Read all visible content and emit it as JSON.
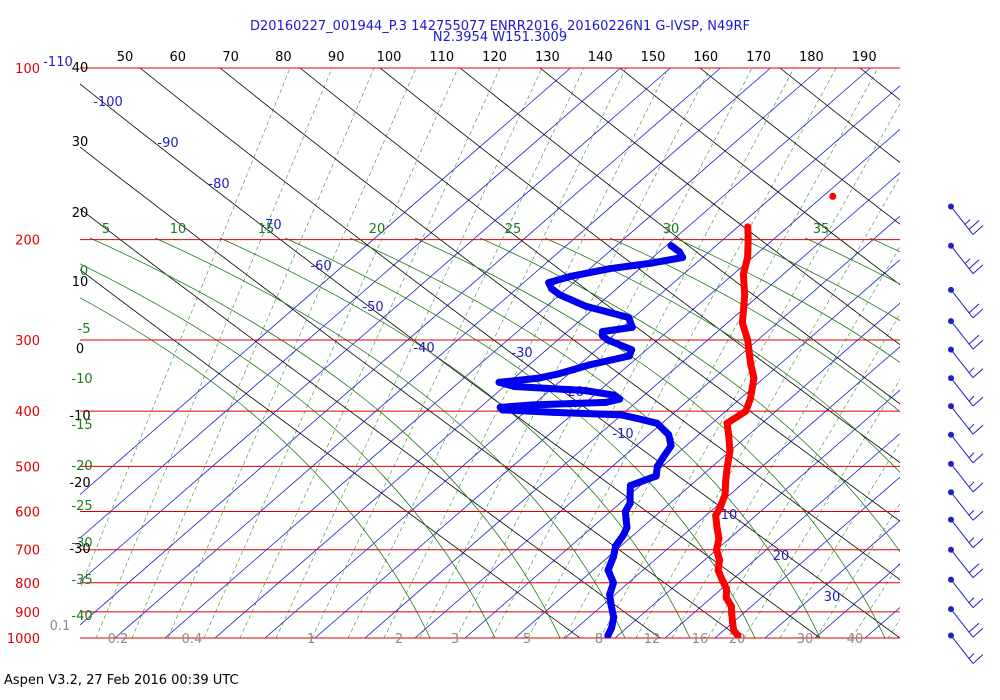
{
  "header": {
    "title_line1": "D20160227_001944_P.3 142755077 ENRR2016, 20160226N1 G-IVSP, N49RF",
    "title_line2": "N2.3954 W151.3009"
  },
  "footer": {
    "text": "Aspen V3.2, 27 Feb 2016  00:39 UTC"
  },
  "chart_data": {
    "type": "skew-t",
    "pressure_axis": {
      "labels": [
        "100",
        "200",
        "300",
        "400",
        "500",
        "600",
        "700",
        "800",
        "900",
        "1000"
      ],
      "color": "#dd0000",
      "range": [
        1000,
        100
      ]
    },
    "temperature_ticks_top": [
      "50",
      "60",
      "70",
      "80",
      "90",
      "100",
      "110",
      "120",
      "130",
      "140",
      "150",
      "160",
      "170",
      "180",
      "190"
    ],
    "blue_isotherm_labels": [
      "-110",
      "-100",
      "-90",
      "-80",
      "-70",
      "-60",
      "-50",
      "-40",
      "-30",
      "-20",
      "-10",
      "10",
      "20",
      "30"
    ],
    "black_left_labels": [
      "40",
      "30",
      "20",
      "10",
      "0",
      "-10",
      "-20",
      "-30"
    ],
    "green_left_labels": [
      "0",
      "-5",
      "-10",
      "-15",
      "-20",
      "-25",
      "-30",
      "-35",
      "-40"
    ],
    "green_top_labels": [
      "5",
      "10",
      "15",
      "20",
      "25",
      "30",
      "35"
    ],
    "mixing_ratio_labels": [
      "0.1",
      "0.2",
      "0.4",
      "1",
      "2",
      "3",
      "5",
      "8",
      "12",
      "16",
      "20",
      "30",
      "40"
    ],
    "series": [
      {
        "role": "temperature",
        "color": "#ff0000",
        "points": [
          [
            190,
            -68
          ],
          [
            200,
            -65
          ],
          [
            215,
            -61
          ],
          [
            230,
            -58
          ],
          [
            250,
            -53
          ],
          [
            280,
            -47
          ],
          [
            300,
            -42
          ],
          [
            330,
            -36
          ],
          [
            350,
            -32
          ],
          [
            380,
            -28
          ],
          [
            400,
            -26
          ],
          [
            420,
            -27
          ],
          [
            440,
            -24
          ],
          [
            470,
            -20
          ],
          [
            500,
            -17
          ],
          [
            530,
            -14
          ],
          [
            560,
            -11
          ],
          [
            590,
            -9
          ],
          [
            610,
            -8
          ],
          [
            640,
            -5
          ],
          [
            670,
            -2
          ],
          [
            700,
            0
          ],
          [
            730,
            3
          ],
          [
            760,
            5
          ],
          [
            790,
            8
          ],
          [
            820,
            11
          ],
          [
            850,
            13
          ],
          [
            880,
            16
          ],
          [
            910,
            18
          ],
          [
            940,
            20
          ],
          [
            970,
            22
          ],
          [
            990,
            24
          ]
        ]
      },
      {
        "role": "temperature-isolated",
        "color": "#ff0000",
        "points": [
          [
            168,
            -58
          ]
        ]
      },
      {
        "role": "dewpoint",
        "color": "#0000ee",
        "points": [
          [
            205,
            -79
          ],
          [
            210,
            -76
          ],
          [
            215,
            -74
          ],
          [
            220,
            -79
          ],
          [
            225,
            -86
          ],
          [
            232,
            -92
          ],
          [
            238,
            -95
          ],
          [
            244,
            -93
          ],
          [
            250,
            -90
          ],
          [
            262,
            -82
          ],
          [
            274,
            -71
          ],
          [
            285,
            -68
          ],
          [
            290,
            -73
          ],
          [
            295,
            -72
          ],
          [
            300,
            -70
          ],
          [
            305,
            -67
          ],
          [
            312,
            -63
          ],
          [
            320,
            -62
          ],
          [
            326,
            -65
          ],
          [
            332,
            -68
          ],
          [
            338,
            -70
          ],
          [
            344,
            -72
          ],
          [
            350,
            -75
          ],
          [
            356,
            -82
          ],
          [
            362,
            -78
          ],
          [
            368,
            -63
          ],
          [
            375,
            -56
          ],
          [
            381,
            -54
          ],
          [
            386,
            -56
          ],
          [
            390,
            -70
          ],
          [
            394,
            -76
          ],
          [
            398,
            -75
          ],
          [
            402,
            -64
          ],
          [
            406,
            -50
          ],
          [
            412,
            -46
          ],
          [
            420,
            -41
          ],
          [
            440,
            -36
          ],
          [
            460,
            -33
          ],
          [
            480,
            -32
          ],
          [
            500,
            -31
          ],
          [
            520,
            -29
          ],
          [
            540,
            -32
          ],
          [
            560,
            -30
          ],
          [
            580,
            -28
          ],
          [
            600,
            -27
          ],
          [
            620,
            -25
          ],
          [
            640,
            -23
          ],
          [
            660,
            -22
          ],
          [
            690,
            -21
          ],
          [
            720,
            -19
          ],
          [
            760,
            -17
          ],
          [
            800,
            -13
          ],
          [
            840,
            -11
          ],
          [
            880,
            -8
          ],
          [
            920,
            -5
          ],
          [
            960,
            -3
          ],
          [
            990,
            -2
          ]
        ]
      }
    ],
    "wind_barbs": [
      {
        "pressure": 175,
        "speed_kt": 25
      },
      {
        "pressure": 205,
        "speed_kt": 25
      },
      {
        "pressure": 245,
        "speed_kt": 20
      },
      {
        "pressure": 278,
        "speed_kt": 20
      },
      {
        "pressure": 312,
        "speed_kt": 15
      },
      {
        "pressure": 350,
        "speed_kt": 15
      },
      {
        "pressure": 392,
        "speed_kt": 15
      },
      {
        "pressure": 440,
        "speed_kt": 15
      },
      {
        "pressure": 495,
        "speed_kt": 15
      },
      {
        "pressure": 555,
        "speed_kt": 15
      },
      {
        "pressure": 620,
        "speed_kt": 15
      },
      {
        "pressure": 700,
        "speed_kt": 20
      },
      {
        "pressure": 790,
        "speed_kt": 15
      },
      {
        "pressure": 890,
        "speed_kt": 20
      },
      {
        "pressure": 990,
        "speed_kt": 15
      }
    ]
  }
}
